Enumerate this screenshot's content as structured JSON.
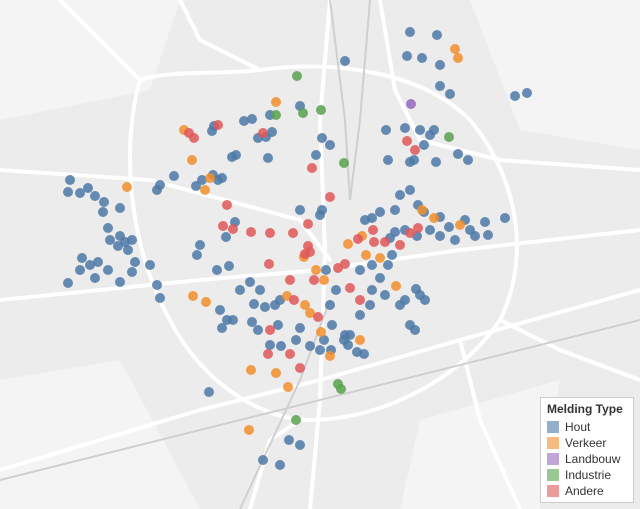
{
  "legend": {
    "title": "Melding Type",
    "items": [
      {
        "label": "Hout",
        "color": "#4e79a7"
      },
      {
        "label": "Verkeer",
        "color": "#f28e2b"
      },
      {
        "label": "Landbouw",
        "color": "#9467bd"
      },
      {
        "label": "Industrie",
        "color": "#59a14f"
      },
      {
        "label": "Andere",
        "color": "#e15759"
      }
    ]
  }
}
